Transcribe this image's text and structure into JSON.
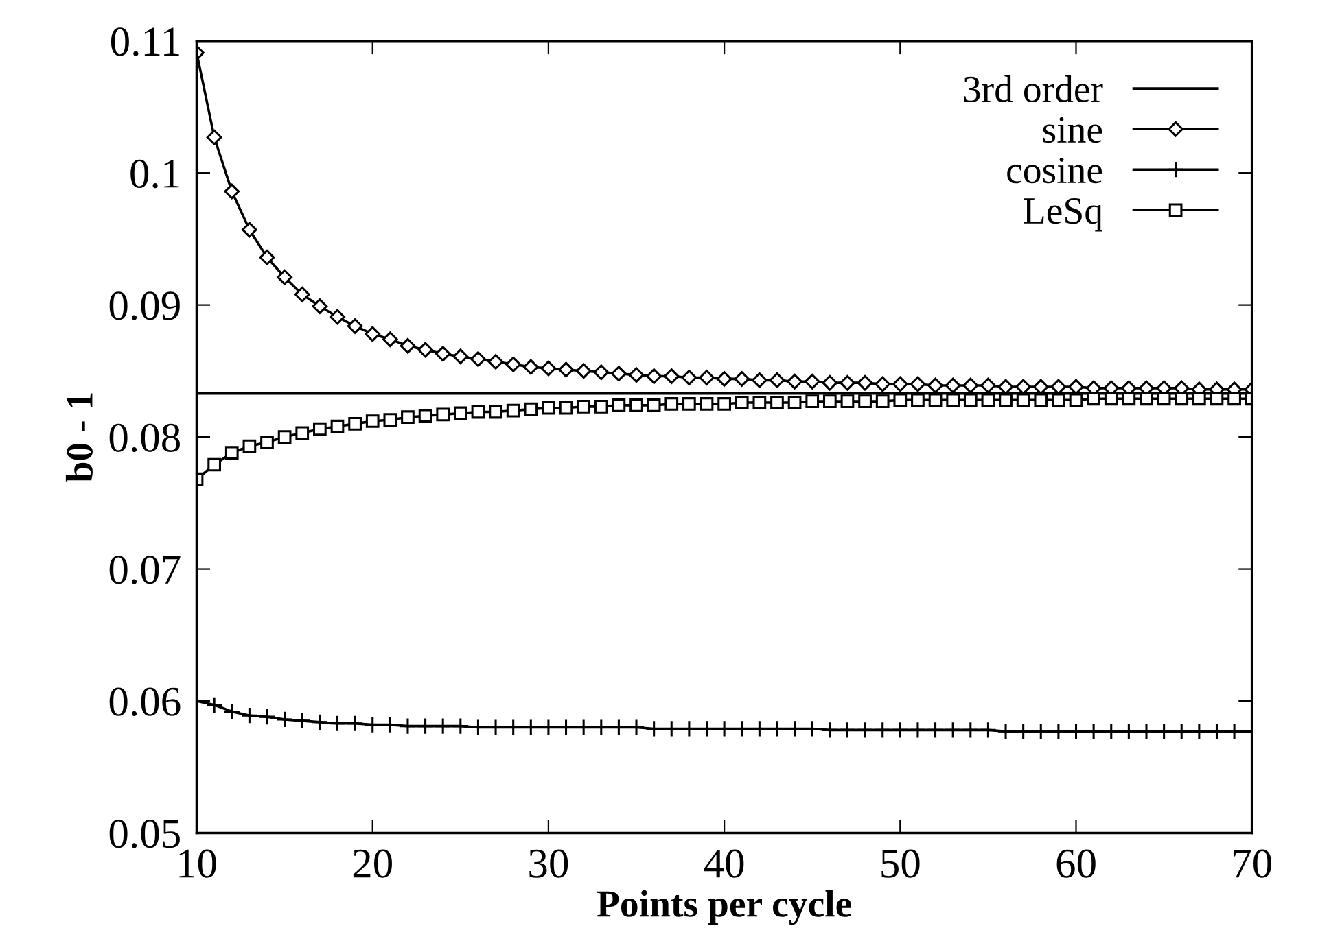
{
  "chart_data": {
    "type": "line",
    "xlabel": "Points per cycle",
    "ylabel": "b0 - 1",
    "xlim": [
      10,
      70
    ],
    "xticks": [
      10,
      20,
      30,
      40,
      50,
      60,
      70
    ],
    "ylim": [
      0.05,
      0.11
    ],
    "yticks": [
      0.05,
      0.06,
      0.07,
      0.08,
      0.09,
      {
        "value": 0.1,
        "label": "0.1"
      },
      0.11
    ],
    "grid": false,
    "legend": "top right",
    "x": [
      10,
      11,
      12,
      13,
      14,
      15,
      16,
      17,
      18,
      19,
      20,
      21,
      22,
      23,
      24,
      25,
      26,
      27,
      28,
      29,
      30,
      31,
      32,
      33,
      34,
      35,
      36,
      37,
      38,
      39,
      40,
      41,
      42,
      43,
      44,
      45,
      46,
      47,
      48,
      49,
      50,
      51,
      52,
      53,
      54,
      55,
      56,
      57,
      58,
      59,
      60,
      61,
      62,
      63,
      64,
      65,
      66,
      67,
      68,
      69,
      70
    ],
    "series": [
      {
        "name": "3rd order",
        "color": "#000000",
        "marker": "none",
        "x": [
          10,
          70
        ],
        "values": [
          0.0833,
          0.0833
        ]
      },
      {
        "name": "sine",
        "color": "#000000",
        "marker": "diamond",
        "values": [
          0.1091,
          0.1027,
          0.0986,
          0.0957,
          0.0936,
          0.0921,
          0.0908,
          0.0899,
          0.0891,
          0.0884,
          0.0878,
          0.0874,
          0.0869,
          0.0866,
          0.0863,
          0.0861,
          0.0859,
          0.0857,
          0.0855,
          0.0853,
          0.0852,
          0.0851,
          0.085,
          0.0849,
          0.0848,
          0.0847,
          0.0846,
          0.0846,
          0.0845,
          0.0845,
          0.0844,
          0.0844,
          0.0843,
          0.0843,
          0.0842,
          0.0842,
          0.0841,
          0.0841,
          0.0841,
          0.084,
          0.084,
          0.084,
          0.0839,
          0.0839,
          0.0839,
          0.0839,
          0.0838,
          0.0838,
          0.0838,
          0.0838,
          0.0838,
          0.0837,
          0.0837,
          0.0837,
          0.0837,
          0.0837,
          0.0837,
          0.0836,
          0.0836,
          0.0836,
          0.0836
        ]
      },
      {
        "name": "cosine",
        "color": "#000000",
        "marker": "cross",
        "values": [
          0.06,
          0.0597,
          0.0592,
          0.0589,
          0.0588,
          0.0586,
          0.0585,
          0.0584,
          0.0583,
          0.0583,
          0.0582,
          0.0582,
          0.0581,
          0.0581,
          0.0581,
          0.0581,
          0.058,
          0.058,
          0.058,
          0.058,
          0.058,
          0.058,
          0.058,
          0.058,
          0.058,
          0.058,
          0.0579,
          0.0579,
          0.0579,
          0.0579,
          0.0579,
          0.0579,
          0.0579,
          0.0579,
          0.0579,
          0.0579,
          0.0578,
          0.0578,
          0.0578,
          0.0578,
          0.0578,
          0.0578,
          0.0578,
          0.0578,
          0.0578,
          0.0578,
          0.0577,
          0.0577,
          0.0577,
          0.0577,
          0.0577,
          0.0577,
          0.0577,
          0.0577,
          0.0577,
          0.0577,
          0.0577,
          0.0577,
          0.0577,
          0.0577,
          0.0577
        ]
      },
      {
        "name": "LeSq",
        "color": "#000000",
        "marker": "square",
        "values": [
          0.0768,
          0.0779,
          0.0788,
          0.0793,
          0.0796,
          0.08,
          0.0803,
          0.0806,
          0.0808,
          0.081,
          0.0812,
          0.0813,
          0.0815,
          0.0816,
          0.0817,
          0.0818,
          0.0819,
          0.0819,
          0.082,
          0.0821,
          0.0822,
          0.0822,
          0.0823,
          0.0823,
          0.0824,
          0.0824,
          0.0824,
          0.0825,
          0.0825,
          0.0825,
          0.0825,
          0.0826,
          0.0826,
          0.0826,
          0.0826,
          0.0827,
          0.0827,
          0.0827,
          0.0827,
          0.0827,
          0.0828,
          0.0828,
          0.0828,
          0.0828,
          0.0828,
          0.0828,
          0.0828,
          0.0828,
          0.0828,
          0.0828,
          0.0828,
          0.0829,
          0.0829,
          0.0829,
          0.0829,
          0.0829,
          0.0829,
          0.0829,
          0.0829,
          0.0829,
          0.0829
        ]
      }
    ]
  }
}
